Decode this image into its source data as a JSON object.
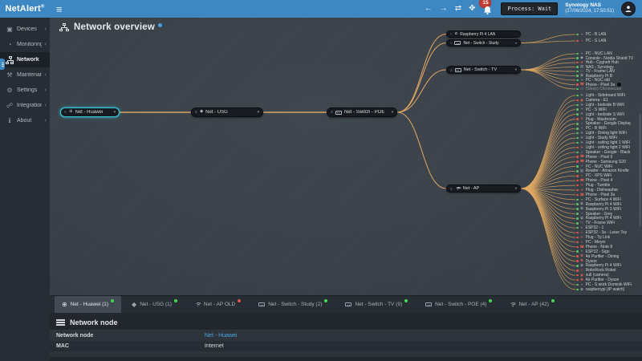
{
  "topbar": {
    "logo": "NetAlert",
    "logo_mark": "®",
    "alerts_count": "15",
    "process_tooltip": "Process: Wait",
    "nas_name": "Synology NAS",
    "nas_time": "(27/06/2024, 17:50:51)"
  },
  "sidebar": {
    "items": [
      {
        "label": "Devices",
        "icon": "devices",
        "collapsed": true
      },
      {
        "label": "Monitoring",
        "icon": "monitoring",
        "collapsed": true
      },
      {
        "label": "Network",
        "icon": "network",
        "active": true
      },
      {
        "label": "Maintenance",
        "icon": "maintenance",
        "collapsed": true
      },
      {
        "label": "Settings",
        "icon": "settings",
        "collapsed": true
      },
      {
        "label": "Integrations",
        "icon": "integrations",
        "collapsed": true
      },
      {
        "label": "About",
        "icon": "about",
        "collapsed": true
      }
    ]
  },
  "main": {
    "title": "Network overview"
  },
  "topology": {
    "nodes": [
      {
        "id": "huawei",
        "label": "Net - Huawei",
        "icon": "globe",
        "selected": true,
        "chevron": true
      },
      {
        "id": "usg",
        "label": "Net - USG",
        "icon": "shield",
        "chevron": true
      },
      {
        "id": "poe",
        "label": "Net - Switch - POE",
        "icon": "switch",
        "chevron": true
      },
      {
        "id": "rasp",
        "label": "Raspberry Pi 4 LAN",
        "icon": "raspberry",
        "chevron": false
      },
      {
        "id": "study",
        "label": "Net - Switch - Study",
        "icon": "switch",
        "chevron": true
      },
      {
        "id": "tv",
        "label": "Net - Switch - TV",
        "icon": "switch",
        "chevron": true
      },
      {
        "id": "ap",
        "label": "Net - AP",
        "icon": "wifi",
        "chevron": true
      }
    ],
    "links": [
      [
        "huawei",
        "usg"
      ],
      [
        "usg",
        "poe"
      ],
      [
        "poe",
        "rasp"
      ],
      [
        "poe",
        "study"
      ],
      [
        "poe",
        "tv"
      ],
      [
        "poe",
        "ap"
      ]
    ],
    "groups": [
      {
        "source": "study",
        "devices": [
          {
            "label": "PC - B LAN",
            "icon": "pc",
            "status": "ok"
          },
          {
            "label": "PC - S LAN",
            "icon": "pc",
            "status": "alert"
          }
        ]
      },
      {
        "source": "tv",
        "devices": [
          {
            "label": "PC - NUC LAN",
            "icon": "pc",
            "status": "ok"
          },
          {
            "label": "Console - Nvidia Shield TV",
            "icon": "console",
            "status": "ok"
          },
          {
            "label": "Hub - Cygnett Hub",
            "icon": "hub",
            "status": "alert"
          },
          {
            "label": "NAS - Synology",
            "icon": "nas",
            "status": "ok"
          },
          {
            "label": "TV - Frame LAN",
            "icon": "tv",
            "status": "ok"
          },
          {
            "label": "Raspberry Pi B",
            "icon": "raspberry",
            "status": "ok"
          },
          {
            "label": "PC - NUC old",
            "icon": "pc",
            "status": "ok"
          },
          {
            "label": "Phone - Pixel 3a",
            "icon": "phone",
            "status": "alert",
            "marker": true
          },
          {
            "label": "(Sleep) Chromecast",
            "icon": "tv",
            "status": "ok",
            "dim": true
          }
        ]
      },
      {
        "source": "ap",
        "devices": [
          {
            "label": "Light - Sideboard WiFi",
            "icon": "light",
            "status": "ok"
          },
          {
            "label": "Camera - E1",
            "icon": "camera",
            "status": "alert"
          },
          {
            "label": "Light - bedside B WiFi",
            "icon": "light",
            "status": "ok"
          },
          {
            "label": "PC - S WiFi",
            "icon": "pc",
            "status": "ok"
          },
          {
            "label": "Light - bedside S WiFi",
            "icon": "light",
            "status": "ok"
          },
          {
            "label": "Plug - Washroom",
            "icon": "plug",
            "status": "alert"
          },
          {
            "label": "Speaker - Google Display",
            "icon": "speaker",
            "status": "ok"
          },
          {
            "label": "PC - B WiFi",
            "icon": "pc",
            "status": "ok"
          },
          {
            "label": "Light - Dining light WiFi",
            "icon": "light",
            "status": "ok"
          },
          {
            "label": "Light - Study WiFi",
            "icon": "light",
            "status": "ok"
          },
          {
            "label": "Light - ceiling light 1 WiFi",
            "icon": "light",
            "status": "ok"
          },
          {
            "label": "Light - ceiling light 2 WiFi",
            "icon": "light",
            "status": "alert"
          },
          {
            "label": "Speaker - Google - Black",
            "icon": "speaker",
            "status": "ok"
          },
          {
            "label": "Phone - Pixel 6",
            "icon": "phone",
            "status": "alert"
          },
          {
            "label": "Phone - Samsung S20",
            "icon": "phone",
            "status": "alert"
          },
          {
            "label": "PC - NUC WiFi",
            "icon": "pc",
            "status": "ok"
          },
          {
            "label": "Reader - Amazon Kindle",
            "icon": "reader",
            "status": "ok"
          },
          {
            "label": "PC - XPS WiFi",
            "icon": "pc",
            "status": "alert"
          },
          {
            "label": "Phone - Pixel 4",
            "icon": "phone",
            "status": "alert"
          },
          {
            "label": "Plug - Tumble",
            "icon": "plug",
            "status": "alert"
          },
          {
            "label": "Plug - Dishwasher",
            "icon": "plug",
            "status": "alert"
          },
          {
            "label": "Phone - Pixel 3a",
            "icon": "phone",
            "status": "alert"
          },
          {
            "label": "PC - Surface 4 WiFi",
            "icon": "pc",
            "status": "ok"
          },
          {
            "label": "Raspberry Pi 4 WiFi",
            "icon": "raspberry",
            "status": "ok"
          },
          {
            "label": "Raspberry Pi 3 WiFi",
            "icon": "raspberry",
            "status": "ok"
          },
          {
            "label": "Speaker - Grey",
            "icon": "speaker",
            "status": "ok"
          },
          {
            "label": "Raspberry Pi 4 WiFi",
            "icon": "raspberry",
            "status": "ok"
          },
          {
            "label": "TV - Frame WiFi",
            "icon": "tv",
            "status": "ok"
          },
          {
            "label": "ESP32 - 1",
            "icon": "esp",
            "status": "ok"
          },
          {
            "label": "ESP32 - 3a - Laser Toy",
            "icon": "esp",
            "status": "alert"
          },
          {
            "label": "Plug - Tp Link",
            "icon": "plug",
            "status": "alert"
          },
          {
            "label": "PC - Meyer",
            "icon": "pc",
            "status": "alert"
          },
          {
            "label": "Phone - Note 8",
            "icon": "phone",
            "status": "alert"
          },
          {
            "label": "ESP32 - Sign",
            "icon": "esp",
            "status": "ok"
          },
          {
            "label": "Air Purifier - Dining",
            "icon": "purifier",
            "status": "alert"
          },
          {
            "label": "Dyson",
            "icon": "purifier",
            "status": "alert"
          },
          {
            "label": "Raspberry Pi 4 WiFi",
            "icon": "raspberry",
            "status": "ok"
          },
          {
            "label": "RoboRock Robot",
            "icon": "robot",
            "status": "alert"
          },
          {
            "label": "null (camera)",
            "icon": "camera",
            "status": "alert"
          },
          {
            "label": "Air Purifier - Dyson",
            "icon": "purifier",
            "status": "alert"
          },
          {
            "label": "PC - S work Dominik WiFi",
            "icon": "pc",
            "status": "ok"
          },
          {
            "label": "raspberrypi (IP watch)",
            "icon": "raspberry",
            "status": "ok"
          }
        ]
      }
    ]
  },
  "tabs": [
    {
      "label": "Net - Huawei (1)",
      "icon": "globe",
      "dot": "green",
      "active": true
    },
    {
      "label": "Net - USG (1)",
      "icon": "shield",
      "dot": "green"
    },
    {
      "label": "Net - AP OLD",
      "icon": "wifi",
      "dot": "red"
    },
    {
      "label": "Net - Switch - Study (2)",
      "icon": "switch",
      "dot": "green"
    },
    {
      "label": "Net - Switch - TV (9)",
      "icon": "switch",
      "dot": "green"
    },
    {
      "label": "Net - Switch - POE (4)",
      "icon": "switch",
      "dot": "green"
    },
    {
      "label": "Net - AP (42)",
      "icon": "wifi",
      "dot": "green"
    }
  ],
  "panel": {
    "title": "Network node",
    "rows": [
      {
        "label": "Network node",
        "value": "Net - Huawei",
        "link": true
      },
      {
        "label": "MAC",
        "value": "Internet",
        "link": false
      }
    ]
  },
  "colors": {
    "accent": "#3d88c2",
    "line": "#e2a963",
    "selected": "#37c5d8",
    "ok": "#57c25e",
    "alert": "#e0544a",
    "link": "#4da3e2"
  }
}
